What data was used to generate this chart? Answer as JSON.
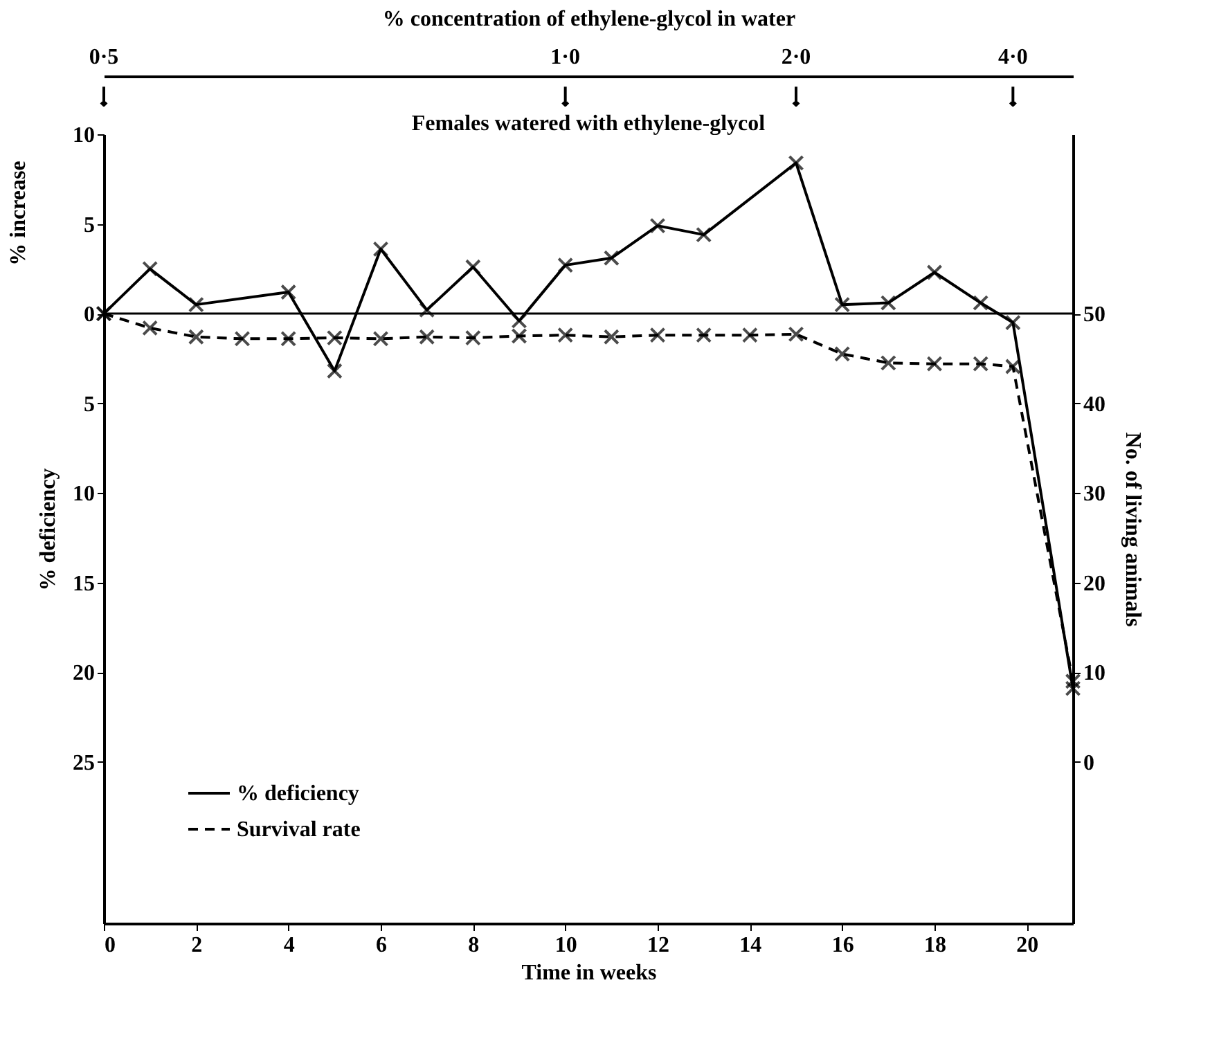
{
  "chart_data": {
    "type": "line",
    "xlabel": "Time in weeks",
    "ylabel": "% deficiency",
    "y2label": "No. of living animals",
    "x2label": "% concentration of ethylene-glycol in water",
    "annotations": [
      "% increase",
      "Females watered with ethylene-glycol",
      {
        "text": "0·5",
        "x": 0
      },
      {
        "text": "1·0",
        "x": 10
      },
      {
        "text": "2·0",
        "x": 15
      },
      {
        "text": "4·0",
        "x": 19.7
      }
    ],
    "xlim": [
      0,
      21
    ],
    "xticks": [
      0,
      2,
      4,
      6,
      8,
      10,
      12,
      14,
      16,
      18,
      20
    ],
    "ylim": [
      -34,
      10
    ],
    "yticks": [
      {
        "value": 10,
        "label": "10"
      },
      {
        "value": 5,
        "label": "5"
      },
      {
        "value": 0,
        "label": "0"
      },
      {
        "value": -5,
        "label": "5"
      },
      {
        "value": -10,
        "label": "10"
      },
      {
        "value": -15,
        "label": "15"
      },
      {
        "value": -20,
        "label": "20"
      },
      {
        "value": -25,
        "label": "25"
      }
    ],
    "y2lim": [
      -18,
      70
    ],
    "y2ticks": [
      0,
      10,
      20,
      30,
      40,
      50
    ],
    "ref_lines": [
      {
        "axis": "y",
        "value": 0,
        "color": "#000000"
      }
    ],
    "grid": false,
    "legend": "bottom left",
    "marker": "cross",
    "series": [
      {
        "name": "% deficiency",
        "color": "#000000",
        "line_style": "solid",
        "x": [
          0,
          1,
          2,
          4,
          5,
          6,
          7,
          8,
          9,
          10,
          11,
          12,
          13,
          15,
          16,
          17,
          18,
          19,
          19.7,
          21
        ],
        "values": [
          0,
          2.5,
          0.5,
          1.2,
          -3.2,
          3.6,
          0.2,
          2.6,
          -0.4,
          2.7,
          3.1,
          4.9,
          4.4,
          8.4,
          0.5,
          0.6,
          2.3,
          0.6,
          -0.5,
          -20.9
        ]
      },
      {
        "name": "Survival rate",
        "color": "#000000",
        "line_style": "dashed",
        "axis": "y2",
        "x": [
          0,
          1,
          2,
          3,
          4,
          5,
          6,
          7,
          8,
          9,
          10,
          11,
          12,
          13,
          14,
          15,
          16,
          17,
          18,
          19,
          19.7,
          21
        ],
        "values": [
          50,
          48.4,
          47.4,
          47.2,
          47.2,
          47.3,
          47.2,
          47.4,
          47.3,
          47.5,
          47.6,
          47.4,
          47.6,
          47.6,
          47.6,
          47.7,
          45.5,
          44.5,
          44.4,
          44.4,
          44.1,
          9
        ]
      }
    ]
  }
}
